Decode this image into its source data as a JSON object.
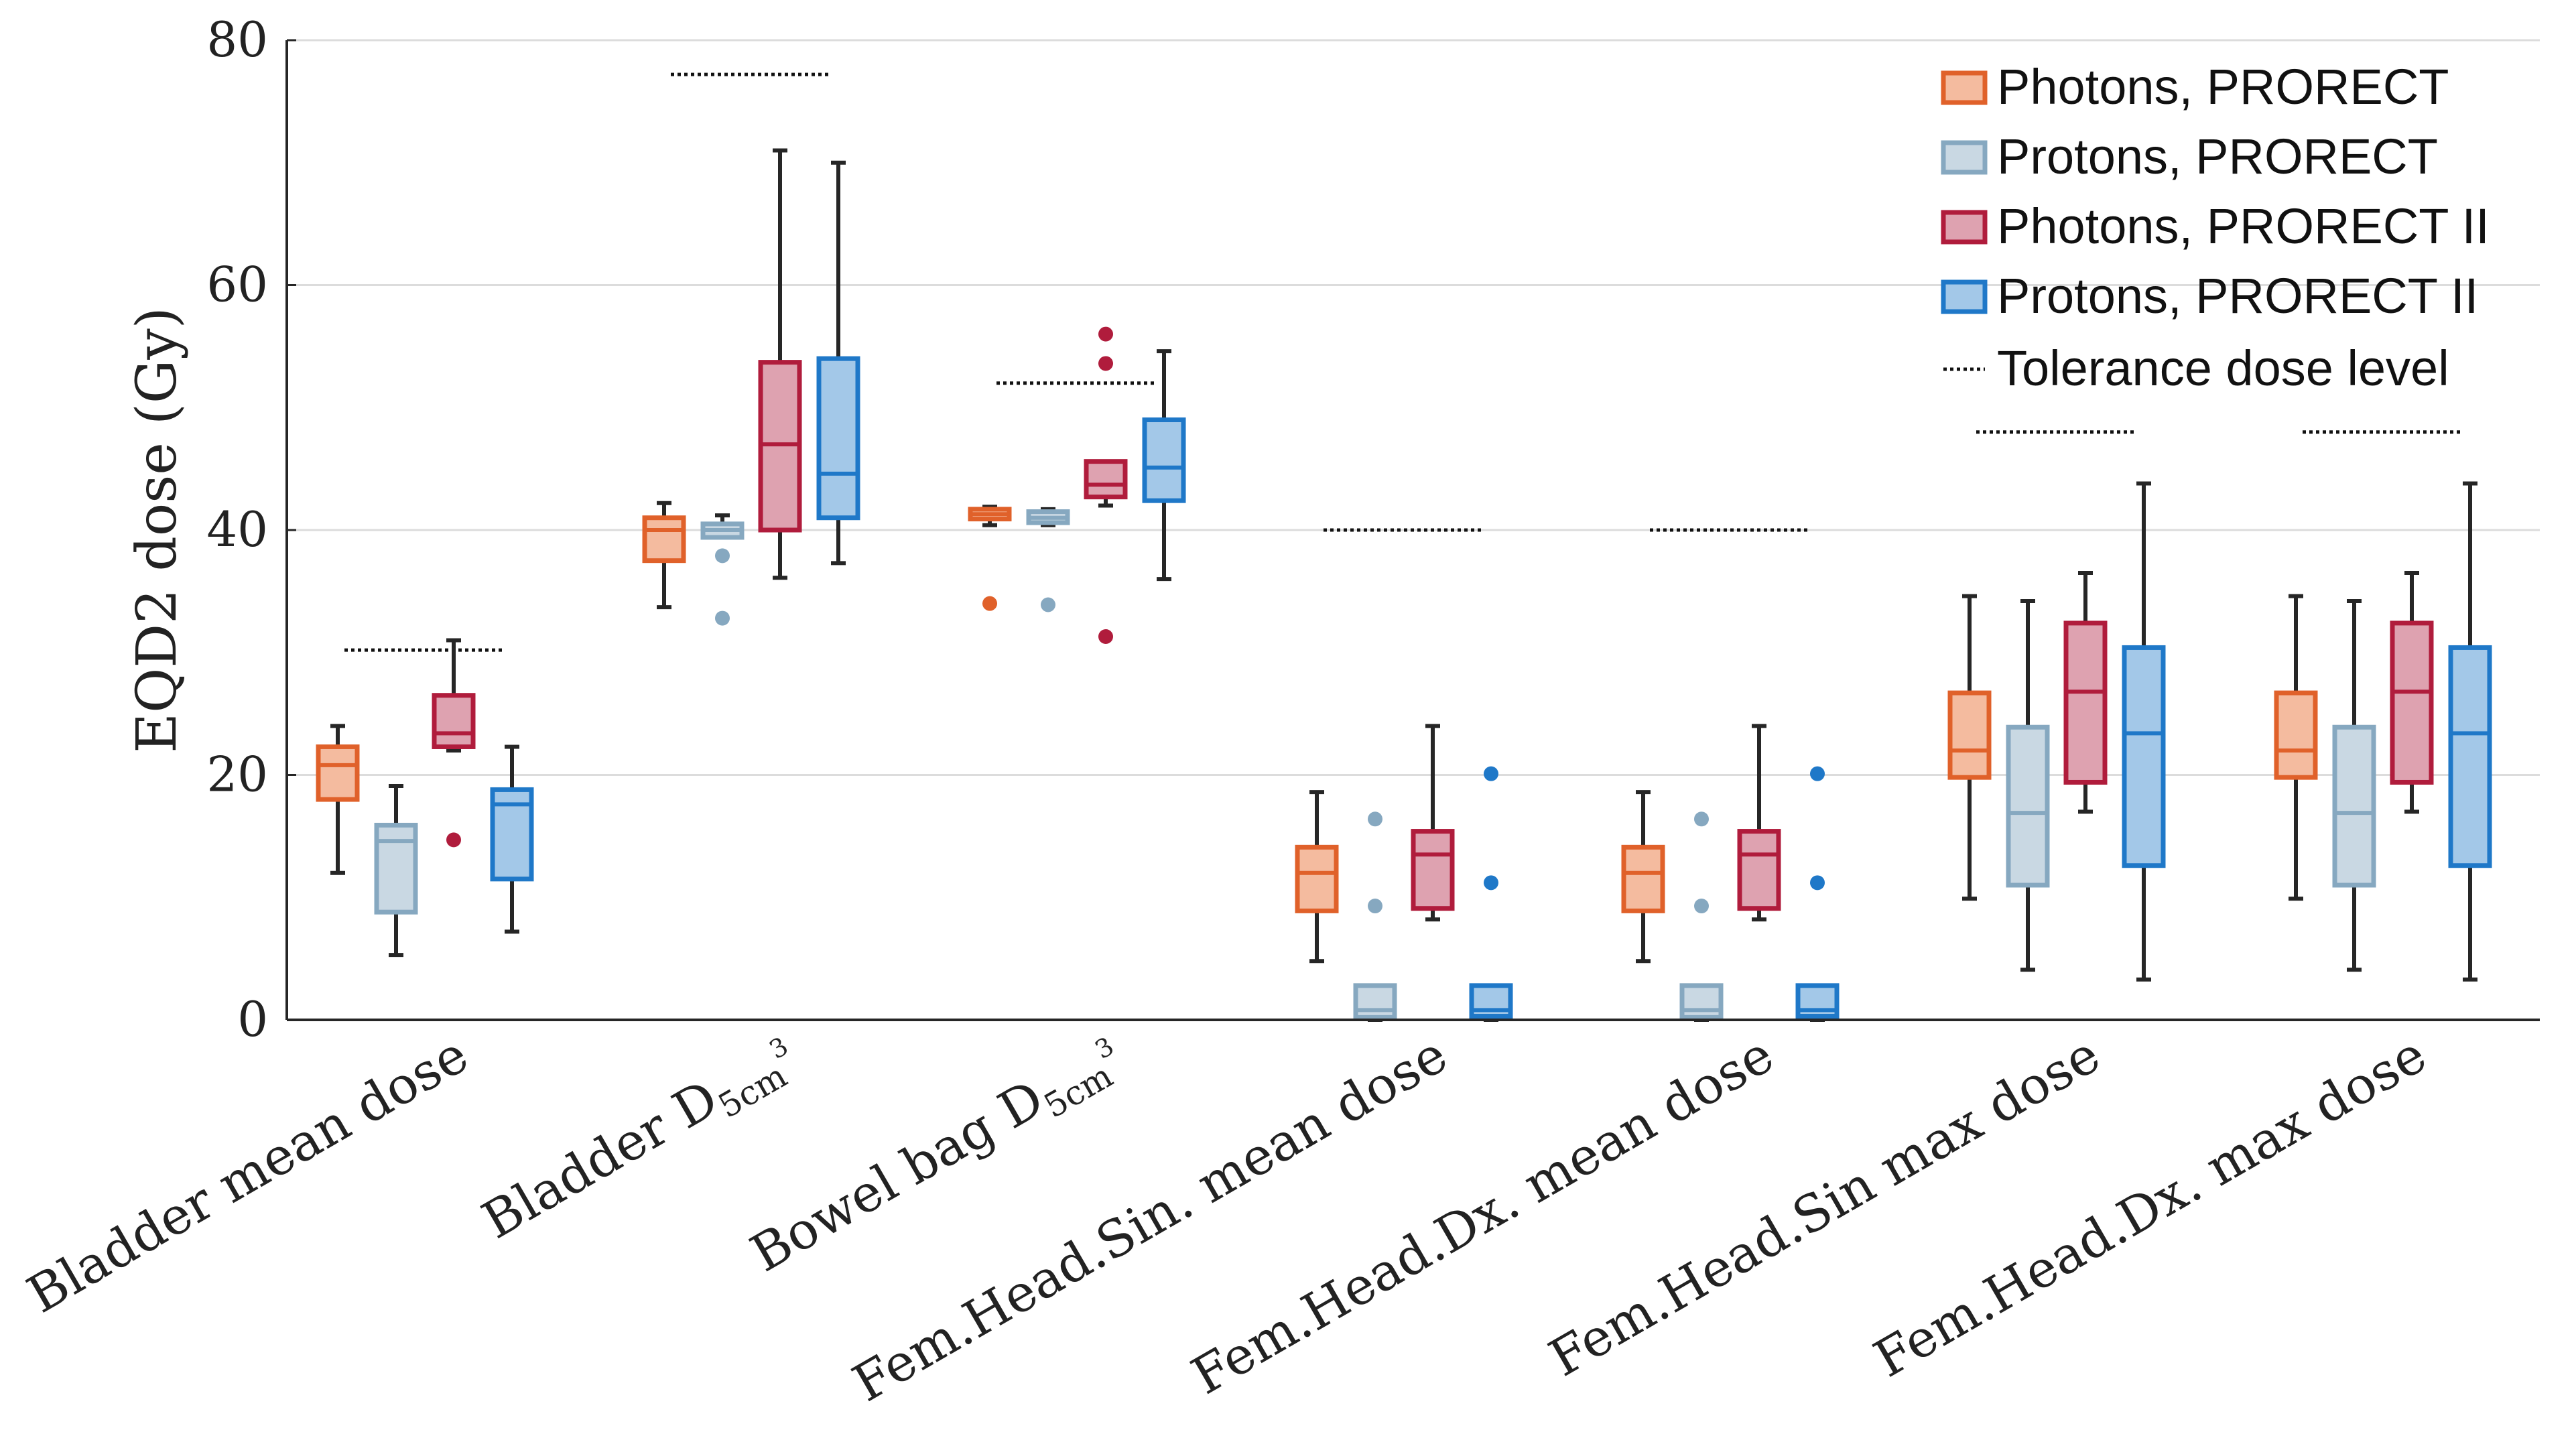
{
  "chart_data": {
    "type": "box",
    "ylabel": "EQD2 dose (Gy)",
    "ylim": [
      0,
      80
    ],
    "yticks": [
      0,
      20,
      40,
      60,
      80
    ],
    "grid": true,
    "legend_position": "top-right",
    "categories": [
      {
        "label": "Bladder mean dose",
        "sub": ""
      },
      {
        "label": "Bladder D",
        "sub": "5cm",
        "sup": "3"
      },
      {
        "label": "Bowel bag D",
        "sub": "5cm",
        "sup": "3"
      },
      {
        "label": "Fem.Head.Sin. mean dose",
        "sub": ""
      },
      {
        "label": "Fem.Head.Dx. mean dose",
        "sub": ""
      },
      {
        "label": "Fem.Head.Sin max dose",
        "sub": ""
      },
      {
        "label": "Fem.Head.Dx. max dose",
        "sub": ""
      }
    ],
    "tolerance_label": "Tolerance dose level",
    "tolerance": [
      30.2,
      77.2,
      52.0,
      40.0,
      40.0,
      48.0,
      48.0
    ],
    "series": [
      {
        "name": "Photons, PRORECT",
        "stroke": "#E0612A",
        "fill": "#F4BB9F",
        "boxes": [
          {
            "wlo": 12.0,
            "q1": 18.0,
            "med": 20.8,
            "q3": 22.3,
            "whi": 24.0,
            "out": []
          },
          {
            "wlo": 33.7,
            "q1": 37.5,
            "med": 40.0,
            "q3": 41.0,
            "whi": 42.2,
            "out": []
          },
          {
            "wlo": 40.4,
            "q1": 40.9,
            "med": 41.3,
            "q3": 41.7,
            "whi": 41.9,
            "out": [
              34.0
            ]
          },
          {
            "wlo": 4.8,
            "q1": 8.9,
            "med": 12.0,
            "q3": 14.1,
            "whi": 18.6,
            "out": []
          },
          {
            "wlo": 4.8,
            "q1": 8.9,
            "med": 12.0,
            "q3": 14.1,
            "whi": 18.6,
            "out": []
          },
          {
            "wlo": 9.9,
            "q1": 19.8,
            "med": 22.0,
            "q3": 26.7,
            "whi": 34.6,
            "out": []
          },
          {
            "wlo": 9.9,
            "q1": 19.8,
            "med": 22.0,
            "q3": 26.7,
            "whi": 34.6,
            "out": []
          }
        ]
      },
      {
        "name": "Protons, PRORECT",
        "stroke": "#86A8C0",
        "fill": "#C9D8E3",
        "boxes": [
          {
            "wlo": 5.3,
            "q1": 8.8,
            "med": 14.6,
            "q3": 15.9,
            "whi": 19.1,
            "out": []
          },
          {
            "wlo": 39.4,
            "q1": 39.4,
            "med": 40.0,
            "q3": 40.5,
            "whi": 41.2,
            "out": [
              37.9,
              32.8
            ]
          },
          {
            "wlo": 40.4,
            "q1": 40.6,
            "med": 41.0,
            "q3": 41.5,
            "whi": 41.7,
            "out": [
              33.9
            ]
          },
          {
            "wlo": 0.0,
            "q1": 0.2,
            "med": 0.8,
            "q3": 2.8,
            "whi": 2.8,
            "out": [
              9.3,
              16.4
            ]
          },
          {
            "wlo": 0.0,
            "q1": 0.2,
            "med": 0.8,
            "q3": 2.8,
            "whi": 2.8,
            "out": [
              9.3,
              16.4
            ]
          },
          {
            "wlo": 4.1,
            "q1": 11.0,
            "med": 16.9,
            "q3": 23.9,
            "whi": 34.2,
            "out": []
          },
          {
            "wlo": 4.1,
            "q1": 11.0,
            "med": 16.9,
            "q3": 23.9,
            "whi": 34.2,
            "out": []
          }
        ]
      },
      {
        "name": "Photons, PRORECT II",
        "stroke": "#B01C3C",
        "fill": "#DEA2B0",
        "boxes": [
          {
            "wlo": 22.0,
            "q1": 22.3,
            "med": 23.4,
            "q3": 26.5,
            "whi": 31.0,
            "out": [
              14.7
            ]
          },
          {
            "wlo": 36.1,
            "q1": 40.0,
            "med": 47.0,
            "q3": 53.7,
            "whi": 71.0,
            "out": []
          },
          {
            "wlo": 42.0,
            "q1": 42.7,
            "med": 43.7,
            "q3": 45.6,
            "whi": 45.6,
            "out": [
              53.6,
              56.0,
              31.3
            ]
          },
          {
            "wlo": 8.2,
            "q1": 9.1,
            "med": 13.5,
            "q3": 15.4,
            "whi": 24.0,
            "out": []
          },
          {
            "wlo": 8.2,
            "q1": 9.1,
            "med": 13.5,
            "q3": 15.4,
            "whi": 24.0,
            "out": []
          },
          {
            "wlo": 17.0,
            "q1": 19.4,
            "med": 26.8,
            "q3": 32.4,
            "whi": 36.5,
            "out": []
          },
          {
            "wlo": 17.0,
            "q1": 19.4,
            "med": 26.8,
            "q3": 32.4,
            "whi": 36.5,
            "out": []
          }
        ]
      },
      {
        "name": "Protons, PRORECT II",
        "stroke": "#1F78C8",
        "fill": "#A3C8E8",
        "boxes": [
          {
            "wlo": 7.2,
            "q1": 11.5,
            "med": 17.6,
            "q3": 18.8,
            "whi": 22.3,
            "out": []
          },
          {
            "wlo": 37.3,
            "q1": 41.0,
            "med": 44.6,
            "q3": 54.0,
            "whi": 70.0,
            "out": []
          },
          {
            "wlo": 36.0,
            "q1": 42.4,
            "med": 45.1,
            "q3": 49.0,
            "whi": 54.6,
            "out": []
          },
          {
            "wlo": 0.0,
            "q1": 0.3,
            "med": 0.8,
            "q3": 2.8,
            "whi": 2.8,
            "out": [
              11.2,
              20.1
            ]
          },
          {
            "wlo": 0.0,
            "q1": 0.3,
            "med": 0.8,
            "q3": 2.8,
            "whi": 2.8,
            "out": [
              11.2,
              20.1
            ]
          },
          {
            "wlo": 3.3,
            "q1": 12.6,
            "med": 23.4,
            "q3": 30.4,
            "whi": 43.8,
            "out": []
          },
          {
            "wlo": 3.3,
            "q1": 12.6,
            "med": 23.4,
            "q3": 30.4,
            "whi": 43.8,
            "out": []
          }
        ]
      }
    ]
  }
}
